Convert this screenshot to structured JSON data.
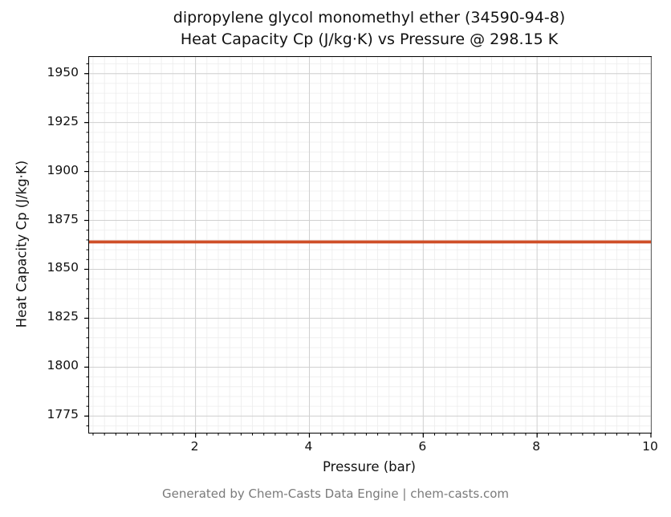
{
  "page": {
    "footer": "Generated by Chem-Casts Data Engine | chem-casts.com"
  },
  "chart_data": {
    "type": "line",
    "title_line1": "dipropylene glycol monomethyl ether (34590-94-8)",
    "title_line2": "Heat Capacity Cp (J/kg·K) vs Pressure @ 298.15 K",
    "xlabel": "Pressure (bar)",
    "ylabel": "Heat Capacity Cp (J/kg·K)",
    "xlim": [
      0.13,
      10
    ],
    "ylim": [
      1766.5,
      1958.5
    ],
    "x_ticks": [
      2,
      4,
      6,
      8,
      10
    ],
    "y_ticks": [
      1775,
      1800,
      1825,
      1850,
      1875,
      1900,
      1925,
      1950
    ],
    "grid": true,
    "minor_grid": true,
    "x_minor_step": 0.2,
    "y_minor_step": 5,
    "legend": "none",
    "series": [
      {
        "name": "Heat Capacity Cp",
        "color": "#cf4f28",
        "x": [
          0.1,
          1,
          2,
          3,
          4,
          5,
          6,
          7,
          8,
          9,
          10
        ],
        "y": [
          1864,
          1864,
          1864,
          1864,
          1864,
          1864,
          1864,
          1864,
          1864,
          1864,
          1864
        ]
      }
    ],
    "constant_value": 1864,
    "temperature": "298.15 K",
    "colors": {
      "line": "#cf4f28",
      "major_grid": "#d0d0d0",
      "minor_grid": "#ececec",
      "spine": "#000000",
      "footer_text": "#7a7a7a"
    }
  }
}
